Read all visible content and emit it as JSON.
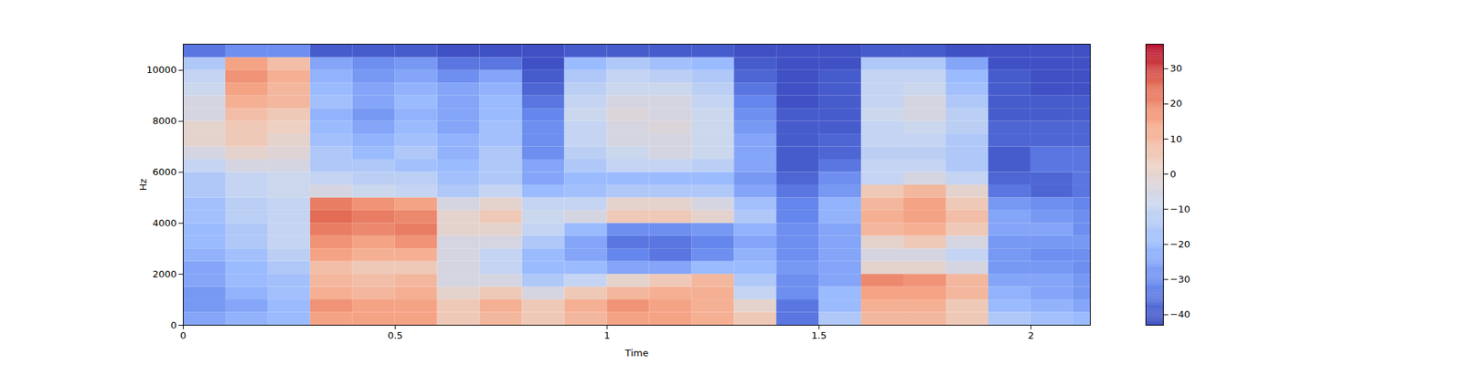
{
  "chart_data": {
    "type": "heatmap",
    "x_label": "Time",
    "y_label": "Hz",
    "xlim": [
      0,
      2.14
    ],
    "ylim": [
      0,
      11025
    ],
    "xticks": [
      0,
      0.5,
      1,
      1.5,
      2
    ],
    "yticks": [
      0,
      2000,
      4000,
      6000,
      8000,
      10000
    ],
    "x_bins": [
      0,
      0.1,
      0.2,
      0.3,
      0.4,
      0.5,
      0.6,
      0.7,
      0.8,
      0.9,
      1.0,
      1.1,
      1.2,
      1.3,
      1.4,
      1.5,
      1.6,
      1.7,
      1.8,
      1.9,
      2.0,
      2.1,
      2.14
    ],
    "y_bins": [
      0,
      500,
      1000,
      1500,
      2000,
      2500,
      3000,
      3500,
      4000,
      4500,
      5000,
      5500,
      6000,
      6500,
      7000,
      7500,
      8000,
      8500,
      9000,
      9500,
      10000,
      10500,
      11025
    ],
    "cells": [
      [
        -25,
        -28,
        -28,
        -25,
        -25,
        -22,
        -20,
        -20,
        -18,
        -18,
        -15,
        -15,
        -10,
        -5,
        0,
        0,
        -5,
        -5,
        -8,
        -10,
        -15,
        -35
      ],
      [
        -22,
        -25,
        -22,
        -20,
        -20,
        -18,
        -15,
        -15,
        -12,
        -12,
        -10,
        -10,
        -5,
        0,
        5,
        5,
        8,
        12,
        15,
        18,
        15,
        -30
      ],
      [
        -20,
        -20,
        -18,
        -18,
        -15,
        -12,
        -10,
        -10,
        -10,
        -10,
        -8,
        -8,
        -5,
        -2,
        0,
        3,
        5,
        10,
        10,
        12,
        8,
        -30
      ],
      [
        15,
        18,
        12,
        10,
        8,
        15,
        18,
        22,
        25,
        22,
        -5,
        -10,
        -15,
        -15,
        -18,
        -20,
        -22,
        -18,
        -20,
        -22,
        -25,
        -40
      ],
      [
        15,
        15,
        10,
        8,
        5,
        12,
        15,
        20,
        22,
        18,
        -8,
        -12,
        -15,
        -20,
        -22,
        -25,
        -28,
        -25,
        -25,
        -28,
        -30,
        -40
      ],
      [
        15,
        15,
        12,
        10,
        5,
        12,
        18,
        22,
        20,
        15,
        -10,
        -12,
        -18,
        -15,
        -18,
        -20,
        -22,
        -20,
        -22,
        -25,
        -28,
        -40
      ],
      [
        5,
        5,
        0,
        -5,
        -5,
        -5,
        -5,
        0,
        0,
        -5,
        -15,
        -18,
        -20,
        -22,
        -22,
        -25,
        -25,
        -25,
        -25,
        -30,
        -35,
        -42
      ],
      [
        10,
        12,
        5,
        -5,
        -10,
        -10,
        -5,
        0,
        5,
        0,
        -10,
        -15,
        -15,
        -15,
        -18,
        -18,
        -20,
        -20,
        -22,
        -25,
        -35,
        -42
      ],
      [
        5,
        5,
        -5,
        -15,
        -20,
        -20,
        -15,
        -10,
        -8,
        -10,
        -20,
        -25,
        -25,
        -30,
        -30,
        -30,
        -32,
        -35,
        -38,
        -40,
        -42,
        -42
      ],
      [
        10,
        12,
        5,
        -10,
        -20,
        -25,
        -25,
        -20,
        -5,
        -10,
        -18,
        -20,
        -15,
        -12,
        -10,
        -10,
        -8,
        -10,
        -12,
        -15,
        -20,
        -40
      ],
      [
        15,
        18,
        10,
        0,
        -25,
        -32,
        -35,
        -30,
        5,
        0,
        -15,
        -20,
        -10,
        -8,
        -5,
        -5,
        -3,
        -5,
        -8,
        -10,
        -15,
        -40
      ],
      [
        15,
        15,
        12,
        5,
        -25,
        -35,
        -35,
        -30,
        5,
        0,
        -15,
        -20,
        -10,
        -5,
        -5,
        -3,
        -5,
        -5,
        -8,
        -12,
        -18,
        -40
      ],
      [
        12,
        12,
        12,
        10,
        -20,
        -30,
        -32,
        -28,
        0,
        -5,
        -15,
        -20,
        -12,
        -8,
        -8,
        -8,
        -8,
        -10,
        -12,
        -15,
        -20,
        -40
      ],
      [
        5,
        0,
        -10,
        -15,
        -20,
        -22,
        -25,
        -22,
        -15,
        -18,
        -25,
        -28,
        -25,
        -25,
        -25,
        -28,
        -30,
        -32,
        -35,
        -38,
        -40,
        -42
      ],
      [
        -35,
        -35,
        -30,
        -30,
        -28,
        -30,
        -30,
        -30,
        -32,
        -32,
        -35,
        -38,
        -40,
        -40,
        -40,
        -40,
        -40,
        -42,
        -42,
        -42,
        -42,
        -42
      ],
      [
        -15,
        -20,
        -20,
        -25,
        -25,
        -25,
        -25,
        -25,
        -22,
        -22,
        -28,
        -30,
        -35,
        -38,
        -38,
        -40,
        -40,
        -40,
        -40,
        -40,
        -42,
        -42
      ],
      [
        10,
        12,
        15,
        20,
        0,
        -5,
        0,
        10,
        12,
        10,
        5,
        -10,
        -10,
        -12,
        -10,
        -10,
        -8,
        -10,
        -10,
        -10,
        -15,
        -40
      ],
      [
        10,
        12,
        15,
        18,
        0,
        -5,
        5,
        12,
        15,
        15,
        10,
        -5,
        -10,
        -12,
        -10,
        -8,
        -5,
        -5,
        -8,
        -10,
        -15,
        -40
      ],
      [
        5,
        5,
        10,
        10,
        -5,
        -10,
        -5,
        5,
        8,
        5,
        0,
        -10,
        -15,
        -15,
        -15,
        -12,
        -12,
        -15,
        -18,
        -20,
        -25,
        -42
      ],
      [
        -15,
        -20,
        -22,
        -25,
        -28,
        -28,
        -28,
        -25,
        -25,
        -28,
        -35,
        -38,
        -40,
        -40,
        -38,
        -38,
        -40,
        -40,
        -40,
        -40,
        -42,
        -42
      ],
      [
        -18,
        -22,
        -25,
        -25,
        -28,
        -30,
        -28,
        -25,
        -28,
        -30,
        -38,
        -38,
        -35,
        -35,
        -38,
        -38,
        -40,
        -40,
        -42,
        -42,
        -42,
        -42
      ],
      [
        -20,
        -25,
        -28,
        -28,
        -30,
        -30,
        -28,
        -30,
        -30,
        -32,
        -35,
        -35,
        -35,
        -35,
        -38,
        -38,
        -40,
        -40,
        -42,
        -42,
        -42,
        -42
      ]
    ],
    "colorbar_lim": [
      -43,
      37
    ],
    "colorbar_ticks": [
      {
        "value": -40,
        "label": "−40"
      },
      {
        "value": -30,
        "label": "−30"
      },
      {
        "value": -20,
        "label": "−20"
      },
      {
        "value": -10,
        "label": "−10"
      },
      0,
      10,
      20,
      30
    ]
  }
}
